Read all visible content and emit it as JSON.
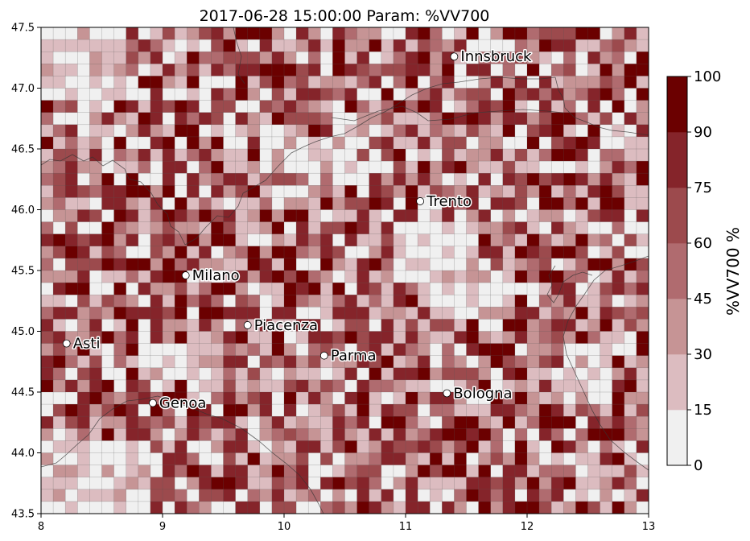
{
  "chart_data": {
    "type": "heatmap",
    "title": "2017-06-28 15:00:00 Param: %VV700",
    "xlabel": "",
    "ylabel": "",
    "xlim": [
      8,
      13
    ],
    "ylim": [
      43.5,
      47.5
    ],
    "xticks": [
      "8",
      "9",
      "10",
      "11",
      "12",
      "13"
    ],
    "yticks": [
      "43.5",
      "44.0",
      "44.5",
      "45.0",
      "45.5",
      "46.0",
      "46.5",
      "47.0",
      "47.5"
    ],
    "grid": {
      "cols": 50,
      "rows": 40,
      "lon_step": 0.1,
      "lat_step": 0.1,
      "random_seed": 20170628
    },
    "colorbar": {
      "label": "%VV700  %",
      "bounds": [
        0,
        15,
        30,
        45,
        60,
        75,
        90,
        100
      ],
      "tick_labels": [
        "0",
        "15",
        "30",
        "45",
        "60",
        "75",
        "90",
        "100"
      ],
      "colors": [
        "#f0f0f0",
        "#dcbcc0",
        "#c69495",
        "#b06b6f",
        "#9c4a4d",
        "#85242a",
        "#6b0000"
      ]
    },
    "cities": [
      {
        "name": "Innsbruck",
        "lon": 11.4,
        "lat": 47.26
      },
      {
        "name": "Trento",
        "lon": 11.12,
        "lat": 46.07
      },
      {
        "name": "Milano",
        "lon": 9.19,
        "lat": 45.46
      },
      {
        "name": "Piacenza",
        "lon": 9.7,
        "lat": 45.05
      },
      {
        "name": "Asti",
        "lon": 8.21,
        "lat": 44.9
      },
      {
        "name": "Parma",
        "lon": 10.33,
        "lat": 44.8
      },
      {
        "name": "Bologna",
        "lon": 11.34,
        "lat": 44.49
      },
      {
        "name": "Genoa",
        "lon": 8.92,
        "lat": 44.41
      }
    ],
    "clear_zones_lonlat": [
      [
        8.0,
        8.7,
        46.95,
        47.5
      ],
      [
        8.0,
        8.9,
        43.5,
        44.05
      ],
      [
        11.3,
        11.9,
        45.1,
        45.5
      ],
      [
        10.9,
        11.6,
        45.5,
        45.9
      ],
      [
        8.8,
        9.4,
        44.6,
        44.9
      ],
      [
        12.3,
        12.7,
        44.4,
        44.9
      ],
      [
        9.9,
        10.6,
        46.3,
        46.6
      ]
    ]
  }
}
